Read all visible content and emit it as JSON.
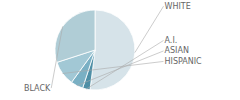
{
  "chart_data": {
    "type": "pie",
    "categories": [
      "WHITE",
      "A.I.",
      "ASIAN",
      "HISPANIC",
      "BLACK"
    ],
    "values": [
      52,
      3,
      5,
      10,
      30
    ],
    "colors": [
      "#d6e3e9",
      "#4e8fa6",
      "#7ab0c4",
      "#a2c8d5",
      "#b0cdd6"
    ]
  }
}
